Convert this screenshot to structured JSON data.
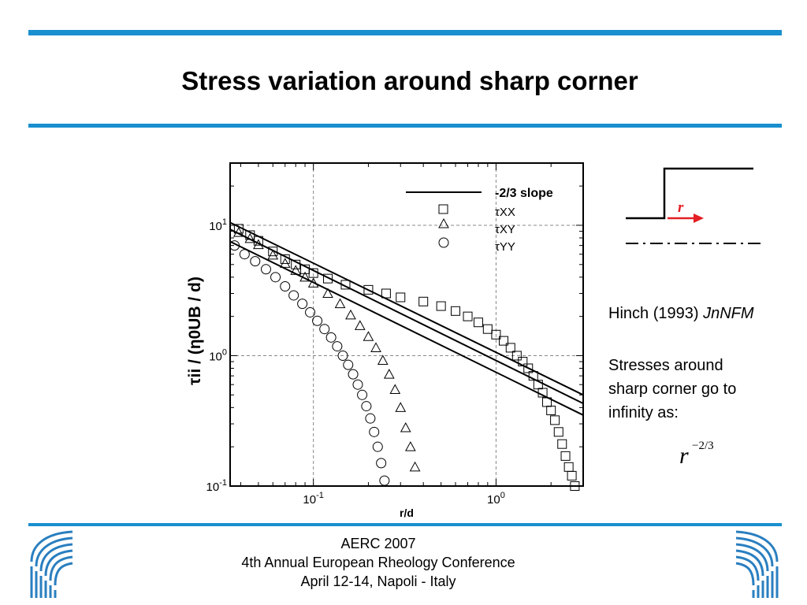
{
  "slide": {
    "title": "Stress variation around sharp corner",
    "side_citation": "Hinch (1993)",
    "side_journal": "JnNFM",
    "side_text_1": "Stresses around",
    "side_text_2": "sharp corner go to",
    "side_text_3": "infinity as:",
    "formula_base": "r",
    "formula_exponent": "−2/3",
    "sketch_label": "r",
    "footer_line1": "AERC 2007",
    "footer_line2": "4th Annual European Rheology Conference",
    "footer_line3": "April 12-14, Napoli - Italy"
  },
  "colors": {
    "accent_bar": "#1a8fcf",
    "arrow": "#e31e24",
    "logo": "#2a7fc0"
  },
  "chart_data": {
    "type": "scatter",
    "title": "",
    "xlabel": "r/d",
    "ylabel": "τii / (η0UB / d)",
    "xscale": "log",
    "yscale": "log",
    "xlim": [
      0.035,
      3.0
    ],
    "ylim": [
      0.1,
      30
    ],
    "grid": true,
    "legend_position": "top-right",
    "x_tick_labels": [
      "10-1",
      "100"
    ],
    "y_tick_labels": [
      "10-1",
      "100",
      "101"
    ],
    "slope_lines": {
      "name": "-2/3 slope",
      "lines": [
        {
          "x": [
            0.035,
            3.0
          ],
          "y": [
            10.5,
            0.5
          ]
        },
        {
          "x": [
            0.035,
            3.0
          ],
          "y": [
            9.3,
            0.43
          ]
        },
        {
          "x": [
            0.035,
            3.0
          ],
          "y": [
            7.5,
            0.35
          ]
        }
      ]
    },
    "series": [
      {
        "name": "τXX",
        "marker": "square",
        "x": [
          0.039,
          0.045,
          0.05,
          0.06,
          0.07,
          0.08,
          0.09,
          0.1,
          0.12,
          0.15,
          0.2,
          0.25,
          0.3,
          0.4,
          0.5,
          0.6,
          0.7,
          0.8,
          0.9,
          1.0,
          1.1,
          1.2,
          1.3,
          1.4,
          1.5,
          1.6,
          1.7,
          1.8,
          1.9,
          2.0,
          2.1,
          2.2,
          2.3,
          2.4,
          2.5,
          2.6,
          2.7
        ],
        "y": [
          9.4,
          8.4,
          7.6,
          6.3,
          5.5,
          5.0,
          4.6,
          4.3,
          3.9,
          3.5,
          3.2,
          3.0,
          2.8,
          2.6,
          2.4,
          2.2,
          2.0,
          1.8,
          1.6,
          1.45,
          1.3,
          1.15,
          1.0,
          0.9,
          0.8,
          0.7,
          0.6,
          0.52,
          0.44,
          0.38,
          0.32,
          0.26,
          0.21,
          0.17,
          0.14,
          0.12,
          0.1
        ]
      },
      {
        "name": "τXY",
        "marker": "triangle",
        "x": [
          0.039,
          0.045,
          0.05,
          0.06,
          0.07,
          0.08,
          0.09,
          0.1,
          0.12,
          0.14,
          0.16,
          0.18,
          0.2,
          0.22,
          0.24,
          0.26,
          0.28,
          0.3,
          0.32,
          0.34,
          0.36
        ],
        "y": [
          8.8,
          7.9,
          7.1,
          5.9,
          5.1,
          4.5,
          4.0,
          3.6,
          3.0,
          2.5,
          2.05,
          1.7,
          1.4,
          1.15,
          0.92,
          0.72,
          0.55,
          0.4,
          0.28,
          0.2,
          0.14
        ]
      },
      {
        "name": "τYY",
        "marker": "circle",
        "x": [
          0.037,
          0.042,
          0.048,
          0.055,
          0.062,
          0.07,
          0.078,
          0.087,
          0.096,
          0.105,
          0.115,
          0.125,
          0.135,
          0.145,
          0.155,
          0.165,
          0.175,
          0.185,
          0.195,
          0.205,
          0.215,
          0.225,
          0.235,
          0.245
        ],
        "y": [
          7.0,
          6.0,
          5.3,
          4.6,
          4.0,
          3.4,
          2.9,
          2.5,
          2.15,
          1.85,
          1.6,
          1.38,
          1.18,
          1.0,
          0.85,
          0.72,
          0.6,
          0.5,
          0.41,
          0.33,
          0.26,
          0.2,
          0.15,
          0.11
        ]
      }
    ]
  }
}
